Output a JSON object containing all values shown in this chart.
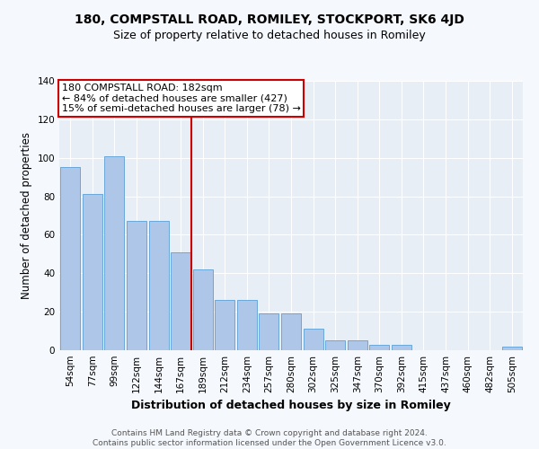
{
  "title": "180, COMPSTALL ROAD, ROMILEY, STOCKPORT, SK6 4JD",
  "subtitle": "Size of property relative to detached houses in Romiley",
  "xlabel": "Distribution of detached houses by size in Romiley",
  "ylabel": "Number of detached properties",
  "categories": [
    "54sqm",
    "77sqm",
    "99sqm",
    "122sqm",
    "144sqm",
    "167sqm",
    "189sqm",
    "212sqm",
    "234sqm",
    "257sqm",
    "280sqm",
    "302sqm",
    "325sqm",
    "347sqm",
    "370sqm",
    "392sqm",
    "415sqm",
    "437sqm",
    "460sqm",
    "482sqm",
    "505sqm"
  ],
  "values": [
    95,
    81,
    101,
    67,
    67,
    51,
    42,
    26,
    26,
    19,
    19,
    11,
    5,
    5,
    3,
    3,
    0,
    0,
    0,
    0,
    2
  ],
  "bar_color": "#aec6e8",
  "bar_edge_color": "#5a9fd4",
  "vline_x_index": 6,
  "vline_color": "#cc0000",
  "annotation_lines": [
    "180 COMPSTALL ROAD: 182sqm",
    "← 84% of detached houses are smaller (427)",
    "15% of semi-detached houses are larger (78) →"
  ],
  "annotation_box_color": "#cc0000",
  "ylim": [
    0,
    140
  ],
  "yticks": [
    0,
    20,
    40,
    60,
    80,
    100,
    120,
    140
  ],
  "fig_background_color": "#f5f8fc",
  "ax_background_color": "#e8eef5",
  "grid_color": "#ffffff",
  "footer": "Contains HM Land Registry data © Crown copyright and database right 2024.\nContains public sector information licensed under the Open Government Licence v3.0.",
  "title_fontsize": 10,
  "subtitle_fontsize": 9,
  "xlabel_fontsize": 9,
  "ylabel_fontsize": 8.5,
  "tick_fontsize": 7.5,
  "annotation_fontsize": 8,
  "footer_fontsize": 6.5
}
